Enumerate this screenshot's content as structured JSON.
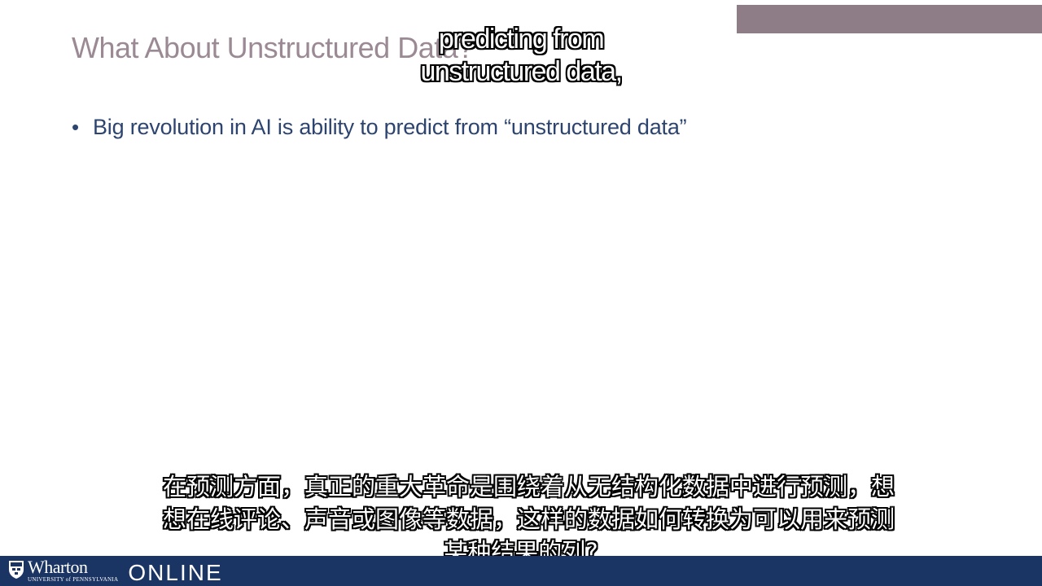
{
  "slide": {
    "title": "What About Unstructured Data?",
    "bullets": [
      "Big revolution in AI is ability to predict from “unstructured data”"
    ]
  },
  "captions": {
    "english_lines": [
      "predicting from",
      "unstructured data,"
    ],
    "chinese_lines": [
      "在预测方面，真正的重大革命是围绕着从无结构化数据中进行预测，想",
      "想在线评论、声音或图像等数据，这样的数据如何转换为可以用来预测",
      "某种结果的列?"
    ]
  },
  "footer": {
    "brand": "Wharton",
    "university": "UNIVERSITY of PENNSYLVANIA",
    "product": "ONLINE"
  },
  "colors": {
    "title": "#9b8a94",
    "bullet_text": "#2d4470",
    "top_bar": "#8e7d87",
    "footer_bar": "#1a3463"
  },
  "icons": {
    "logo": "penn-shield-icon"
  }
}
